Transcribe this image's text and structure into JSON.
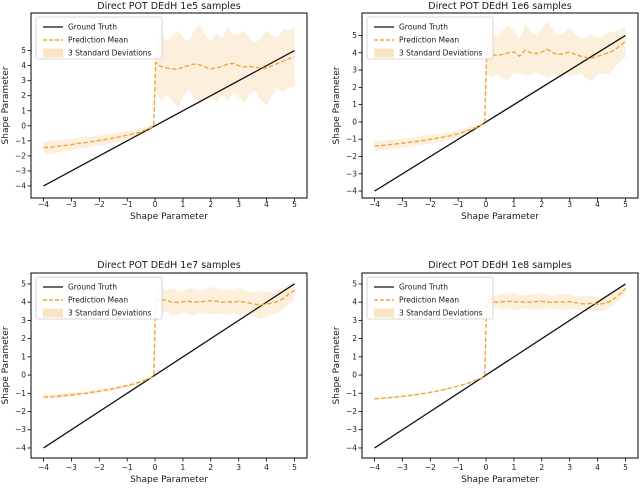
{
  "page": {
    "background": "#ffffff"
  },
  "styles": {
    "ground_truth_color": "#111111",
    "prediction_color": "#efa63c",
    "band_fill": "#efa63c",
    "band_opacity": 0.18,
    "legend_band_opacity": 0.3,
    "frame_color": "#000000",
    "text_color": "#1a1a1a",
    "legend_border": "#cccccc"
  },
  "chart_data": [
    {
      "id": "1e5",
      "type": "line",
      "title": "Direct POT DEdH 1e5 samples",
      "xlabel": "Shape Parameter",
      "ylabel": "Shape Parameter",
      "xlim": [
        -4.45,
        5.45
      ],
      "ylim": [
        -4.8,
        7.5
      ],
      "xticks": [
        -4,
        -3,
        -2,
        -1,
        0,
        1,
        2,
        3,
        4,
        5
      ],
      "yticks": [
        -4,
        -3,
        -2,
        -1,
        0,
        1,
        2,
        3,
        4,
        5
      ],
      "legend": [
        "Ground Truth",
        "Prediction Mean",
        "3 Standard Deviations"
      ],
      "ground_truth": {
        "x": [
          -4,
          5
        ],
        "y": [
          -4,
          5
        ]
      },
      "prediction": {
        "x": [
          -4,
          -3.7,
          -3.4,
          -3.1,
          -2.8,
          -2.5,
          -2.2,
          -1.9,
          -1.6,
          -1.3,
          -1,
          -0.8,
          -0.6,
          -0.4,
          -0.25,
          -0.15,
          -0.05,
          0.02,
          0.2,
          0.4,
          0.6,
          0.8,
          1,
          1.2,
          1.4,
          1.6,
          1.8,
          2,
          2.2,
          2.4,
          2.6,
          2.8,
          3,
          3.2,
          3.4,
          3.6,
          3.8,
          4,
          4.2,
          4.4,
          4.6,
          4.8,
          5
        ],
        "y": [
          -1.45,
          -1.42,
          -1.33,
          -1.28,
          -1.18,
          -1.12,
          -1.02,
          -0.95,
          -0.85,
          -0.75,
          -0.62,
          -0.55,
          -0.45,
          -0.32,
          -0.22,
          -0.12,
          -0.02,
          4.2,
          3.95,
          3.85,
          3.8,
          3.75,
          3.9,
          4.0,
          4.1,
          4.05,
          3.9,
          3.8,
          3.85,
          3.95,
          4.1,
          4.15,
          4.0,
          3.9,
          3.95,
          3.9,
          3.8,
          3.85,
          4.0,
          4.15,
          4.3,
          4.45,
          4.6
        ]
      },
      "band_halfwidth": [
        0.4,
        0.45,
        0.38,
        0.42,
        0.36,
        0.38,
        0.33,
        0.35,
        0.3,
        0.32,
        0.28,
        0.26,
        0.24,
        0.22,
        0.2,
        0.17,
        0.12,
        1.8,
        2.3,
        1.8,
        2.1,
        2.6,
        2.0,
        1.6,
        2.2,
        2.7,
        2.1,
        1.8,
        2.3,
        1.9,
        2.5,
        1.9,
        2.1,
        2.4,
        1.8,
        1.6,
        2.1,
        2.5,
        2.0,
        1.7,
        2.1,
        1.9,
        2.0
      ]
    },
    {
      "id": "1e6",
      "type": "line",
      "title": "Direct POT DEdH 1e6 samples",
      "xlabel": "Shape Parameter",
      "ylabel": "Shape Parameter",
      "xlim": [
        -4.45,
        5.45
      ],
      "ylim": [
        -4.4,
        6.3
      ],
      "xticks": [
        -4,
        -3,
        -2,
        -1,
        0,
        1,
        2,
        3,
        4,
        5
      ],
      "yticks": [
        -4,
        -3,
        -2,
        -1,
        0,
        1,
        2,
        3,
        4,
        5
      ],
      "legend": [
        "Ground Truth",
        "Prediction Mean",
        "3 Standard Deviations"
      ],
      "ground_truth": {
        "x": [
          -4,
          5
        ],
        "y": [
          -4,
          5
        ]
      },
      "prediction": {
        "x": [
          -4,
          -3.7,
          -3.4,
          -3.1,
          -2.8,
          -2.5,
          -2.2,
          -1.9,
          -1.6,
          -1.3,
          -1,
          -0.8,
          -0.6,
          -0.4,
          -0.25,
          -0.15,
          -0.05,
          0.02,
          0.2,
          0.4,
          0.6,
          0.8,
          1,
          1.2,
          1.4,
          1.6,
          1.8,
          2,
          2.2,
          2.4,
          2.6,
          2.8,
          3,
          3.2,
          3.4,
          3.6,
          3.8,
          4,
          4.2,
          4.4,
          4.6,
          4.8,
          5
        ],
        "y": [
          -1.4,
          -1.36,
          -1.3,
          -1.25,
          -1.19,
          -1.13,
          -1.06,
          -0.98,
          -0.9,
          -0.8,
          -0.68,
          -0.58,
          -0.47,
          -0.35,
          -0.26,
          -0.16,
          -0.06,
          3.9,
          3.9,
          3.85,
          3.9,
          4.0,
          4.05,
          3.8,
          4.15,
          4.0,
          3.95,
          4.05,
          4.2,
          4.0,
          3.9,
          3.95,
          4.05,
          3.9,
          3.8,
          3.72,
          3.7,
          3.8,
          3.9,
          4.0,
          4.15,
          4.4,
          4.65
        ]
      },
      "band_halfwidth": [
        0.3,
        0.28,
        0.28,
        0.27,
        0.27,
        0.26,
        0.25,
        0.24,
        0.23,
        0.22,
        0.2,
        0.19,
        0.17,
        0.15,
        0.13,
        0.11,
        0.09,
        1.1,
        1.3,
        1.1,
        1.4,
        1.6,
        1.2,
        1.0,
        1.5,
        1.25,
        1.1,
        1.35,
        1.65,
        1.3,
        1.1,
        1.2,
        1.4,
        1.15,
        1.0,
        1.2,
        1.35,
        1.05,
        1.1,
        1.25,
        1.0,
        0.95,
        0.9
      ]
    },
    {
      "id": "1e7",
      "type": "line",
      "title": "Direct POT DEdH 1e7 samples",
      "xlabel": "Shape Parameter",
      "ylabel": "Shape Parameter",
      "xlim": [
        -4.45,
        5.45
      ],
      "ylim": [
        -4.55,
        5.6
      ],
      "xticks": [
        -4,
        -3,
        -2,
        -1,
        0,
        1,
        2,
        3,
        4,
        5
      ],
      "yticks": [
        -4,
        -3,
        -2,
        -1,
        0,
        1,
        2,
        3,
        4,
        5
      ],
      "legend": [
        "Ground Truth",
        "Prediction Mean",
        "3 Standard Deviations"
      ],
      "ground_truth": {
        "x": [
          -4,
          5
        ],
        "y": [
          -4,
          5
        ]
      },
      "prediction": {
        "x": [
          -4,
          -3.7,
          -3.4,
          -3.1,
          -2.8,
          -2.5,
          -2.2,
          -1.9,
          -1.6,
          -1.3,
          -1,
          -0.8,
          -0.6,
          -0.4,
          -0.25,
          -0.15,
          -0.05,
          0.02,
          0.2,
          0.4,
          0.6,
          0.8,
          1,
          1.2,
          1.4,
          1.6,
          1.8,
          2,
          2.2,
          2.4,
          2.6,
          2.8,
          3,
          3.2,
          3.4,
          3.6,
          3.8,
          4,
          4.2,
          4.4,
          4.6,
          4.8,
          5
        ],
        "y": [
          -1.2,
          -1.18,
          -1.15,
          -1.1,
          -1.05,
          -1.0,
          -0.93,
          -0.86,
          -0.78,
          -0.68,
          -0.58,
          -0.5,
          -0.4,
          -0.3,
          -0.22,
          -0.14,
          -0.04,
          4.1,
          4.15,
          4.1,
          4.0,
          3.98,
          4.02,
          4.05,
          4.0,
          4.02,
          4.05,
          4.08,
          4.05,
          4.0,
          4.02,
          4.0,
          4.05,
          4.0,
          3.95,
          3.88,
          3.85,
          3.9,
          3.95,
          4.05,
          4.2,
          4.45,
          4.65
        ]
      },
      "band_halfwidth": [
        0.12,
        0.12,
        0.11,
        0.11,
        0.1,
        0.1,
        0.1,
        0.09,
        0.09,
        0.08,
        0.08,
        0.07,
        0.07,
        0.06,
        0.06,
        0.05,
        0.05,
        0.6,
        0.7,
        0.6,
        0.75,
        0.65,
        0.6,
        0.7,
        0.75,
        0.6,
        0.68,
        0.75,
        0.7,
        0.62,
        0.7,
        0.62,
        0.75,
        0.68,
        0.6,
        0.68,
        0.8,
        0.68,
        0.6,
        0.65,
        0.6,
        0.55,
        0.5
      ]
    },
    {
      "id": "1e8",
      "type": "line",
      "title": "Direct POT DEdH 1e8 samples",
      "xlabel": "Shape Parameter",
      "ylabel": "Shape Parameter",
      "xlim": [
        -4.45,
        5.45
      ],
      "ylim": [
        -4.55,
        5.6
      ],
      "xticks": [
        -4,
        -3,
        -2,
        -1,
        0,
        1,
        2,
        3,
        4,
        5
      ],
      "yticks": [
        -4,
        -3,
        -2,
        -1,
        0,
        1,
        2,
        3,
        4,
        5
      ],
      "legend": [
        "Ground Truth",
        "Prediction Mean",
        "3 Standard Deviations"
      ],
      "ground_truth": {
        "x": [
          -4,
          5
        ],
        "y": [
          -4,
          5
        ]
      },
      "prediction": {
        "x": [
          -4,
          -3.7,
          -3.4,
          -3.1,
          -2.8,
          -2.5,
          -2.2,
          -1.9,
          -1.6,
          -1.3,
          -1,
          -0.8,
          -0.6,
          -0.4,
          -0.25,
          -0.15,
          -0.05,
          0.02,
          0.2,
          0.4,
          0.6,
          0.8,
          1,
          1.2,
          1.4,
          1.6,
          1.8,
          2,
          2.2,
          2.4,
          2.6,
          2.8,
          3,
          3.2,
          3.4,
          3.6,
          3.8,
          4,
          4.2,
          4.4,
          4.6,
          4.8,
          5
        ],
        "y": [
          -1.3,
          -1.27,
          -1.23,
          -1.18,
          -1.13,
          -1.07,
          -1.0,
          -0.92,
          -0.83,
          -0.72,
          -0.6,
          -0.52,
          -0.42,
          -0.3,
          -0.22,
          -0.14,
          -0.05,
          4.0,
          4.0,
          4.0,
          4.02,
          4.05,
          4.03,
          4.0,
          4.02,
          4.0,
          4.03,
          4.05,
          4.0,
          4.0,
          4.02,
          4.0,
          4.03,
          3.98,
          3.92,
          3.9,
          3.95,
          3.88,
          3.92,
          4.0,
          4.2,
          4.45,
          4.75
        ]
      },
      "band_halfwidth": [
        0.05,
        0.05,
        0.05,
        0.05,
        0.05,
        0.04,
        0.04,
        0.04,
        0.04,
        0.04,
        0.03,
        0.03,
        0.03,
        0.03,
        0.03,
        0.02,
        0.02,
        0.35,
        0.4,
        0.35,
        0.45,
        0.4,
        0.48,
        0.4,
        0.35,
        0.45,
        0.4,
        0.48,
        0.4,
        0.35,
        0.4,
        0.45,
        0.4,
        0.35,
        0.4,
        0.45,
        0.4,
        0.35,
        0.4,
        0.35,
        0.32,
        0.3,
        0.28
      ]
    }
  ]
}
